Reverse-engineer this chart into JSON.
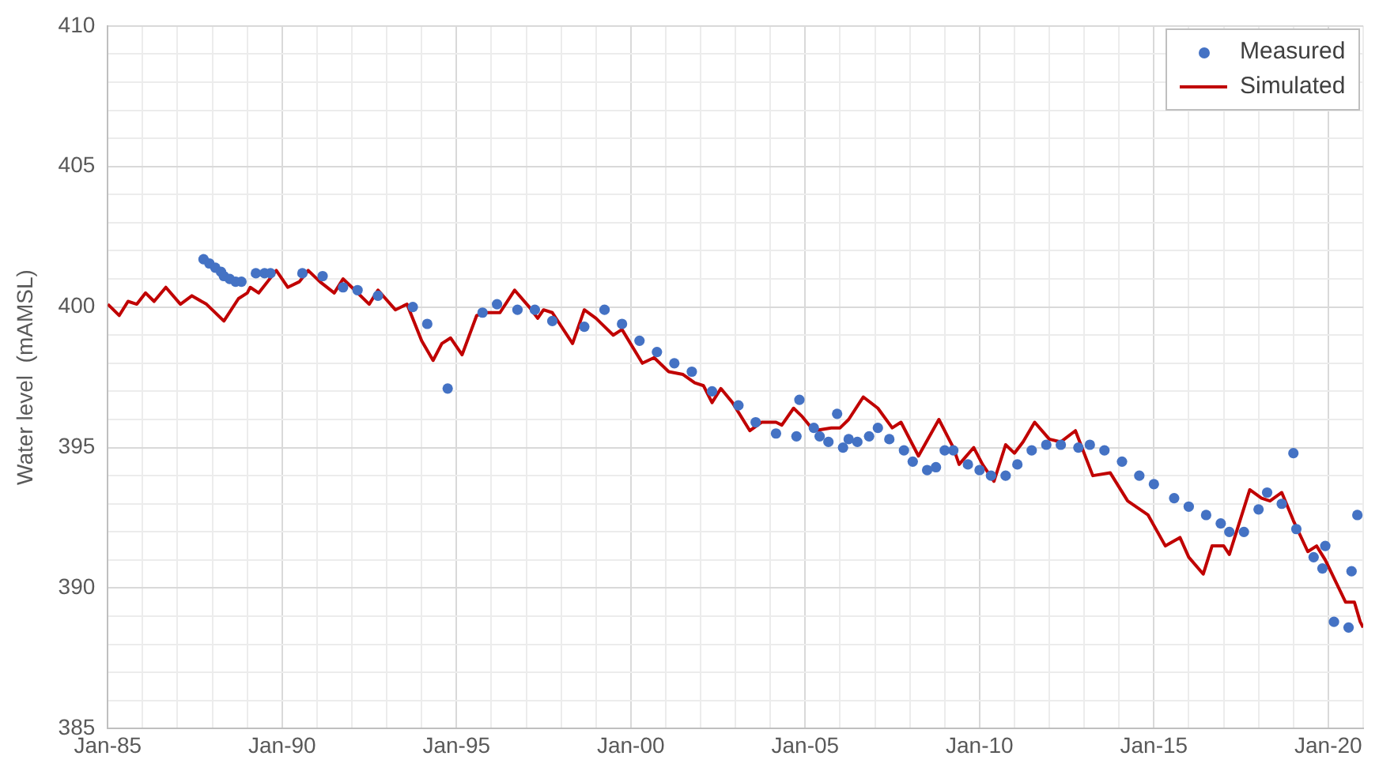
{
  "chart_data": {
    "type": "scatter",
    "ylabel": "Water level  (mAMSL)",
    "xlim": [
      "1985-01",
      "2021-01"
    ],
    "ylim": [
      385,
      410
    ],
    "xticks": [
      {
        "value": "1985-01",
        "label": "Jan-85"
      },
      {
        "value": "1986-01",
        "label": null
      },
      {
        "value": "1987-01",
        "label": null
      },
      {
        "value": "1988-01",
        "label": null
      },
      {
        "value": "1989-01",
        "label": null
      },
      {
        "value": "1990-01",
        "label": "Jan-90"
      },
      {
        "value": "1991-01",
        "label": null
      },
      {
        "value": "1992-01",
        "label": null
      },
      {
        "value": "1993-01",
        "label": null
      },
      {
        "value": "1994-01",
        "label": null
      },
      {
        "value": "1995-01",
        "label": "Jan-95"
      },
      {
        "value": "1996-01",
        "label": null
      },
      {
        "value": "1997-01",
        "label": null
      },
      {
        "value": "1998-01",
        "label": null
      },
      {
        "value": "1999-01",
        "label": null
      },
      {
        "value": "2000-01",
        "label": "Jan-00"
      },
      {
        "value": "2001-01",
        "label": null
      },
      {
        "value": "2002-01",
        "label": null
      },
      {
        "value": "2003-01",
        "label": null
      },
      {
        "value": "2004-01",
        "label": null
      },
      {
        "value": "2005-01",
        "label": "Jan-05"
      },
      {
        "value": "2006-01",
        "label": null
      },
      {
        "value": "2007-01",
        "label": null
      },
      {
        "value": "2008-01",
        "label": null
      },
      {
        "value": "2009-01",
        "label": null
      },
      {
        "value": "2010-01",
        "label": "Jan-10"
      },
      {
        "value": "2011-01",
        "label": null
      },
      {
        "value": "2012-01",
        "label": null
      },
      {
        "value": "2013-01",
        "label": null
      },
      {
        "value": "2014-01",
        "label": null
      },
      {
        "value": "2015-01",
        "label": "Jan-15"
      },
      {
        "value": "2016-01",
        "label": null
      },
      {
        "value": "2017-01",
        "label": null
      },
      {
        "value": "2018-01",
        "label": null
      },
      {
        "value": "2019-01",
        "label": null
      },
      {
        "value": "2020-01",
        "label": "Jan-20"
      },
      {
        "value": "2021-01",
        "label": null
      }
    ],
    "yticks": [
      385,
      {
        "value": 386,
        "label": null
      },
      {
        "value": 387,
        "label": null
      },
      {
        "value": 388,
        "label": null
      },
      {
        "value": 389,
        "label": null
      },
      390,
      {
        "value": 391,
        "label": null
      },
      {
        "value": 392,
        "label": null
      },
      {
        "value": 393,
        "label": null
      },
      {
        "value": 394,
        "label": null
      },
      395,
      {
        "value": 396,
        "label": null
      },
      {
        "value": 397,
        "label": null
      },
      {
        "value": 398,
        "label": null
      },
      {
        "value": 399,
        "label": null
      },
      400,
      {
        "value": 401,
        "label": null
      },
      {
        "value": 402,
        "label": null
      },
      {
        "value": 403,
        "label": null
      },
      {
        "value": 404,
        "label": null
      },
      405,
      {
        "value": 406,
        "label": null
      },
      {
        "value": 407,
        "label": null
      },
      {
        "value": 408,
        "label": null
      },
      {
        "value": 409,
        "label": null
      },
      410
    ],
    "grid": true,
    "legend": "top right",
    "series": [
      {
        "name": "Measured",
        "marker": "circle",
        "color": "#4472c4",
        "x": [
          "1987-10",
          "1987-12",
          "1988-02",
          "1988-04",
          "1988-05",
          "1988-07",
          "1988-09",
          "1988-11",
          "1989-04",
          "1989-07",
          "1989-09",
          "1990-08",
          "1991-03",
          "1991-10",
          "1992-03",
          "1992-10",
          "1993-10",
          "1994-03",
          "1994-10",
          "1995-10",
          "1996-03",
          "1996-10",
          "1997-04",
          "1997-10",
          "1998-09",
          "1999-04",
          "1999-10",
          "2000-04",
          "2000-10",
          "2001-04",
          "2001-10",
          "2002-05",
          "2003-02",
          "2003-08",
          "2004-03",
          "2004-10",
          "2004-11",
          "2005-04",
          "2005-06",
          "2005-09",
          "2005-12",
          "2006-02",
          "2006-04",
          "2006-07",
          "2006-11",
          "2007-02",
          "2007-06",
          "2007-11",
          "2008-02",
          "2008-07",
          "2008-10",
          "2009-01",
          "2009-04",
          "2009-09",
          "2010-01",
          "2010-05",
          "2010-10",
          "2011-02",
          "2011-07",
          "2011-12",
          "2012-05",
          "2012-11",
          "2013-03",
          "2013-08",
          "2014-02",
          "2014-08",
          "2015-01",
          "2015-08",
          "2016-01",
          "2016-07",
          "2016-12",
          "2017-03",
          "2017-08",
          "2018-01",
          "2018-04",
          "2018-09",
          "2019-01",
          "2019-02",
          "2019-08",
          "2019-11",
          "2019-12",
          "2020-03",
          "2020-08",
          "2020-09",
          "2020-11"
        ],
        "values": [
          401.7,
          401.55,
          401.4,
          401.25,
          401.1,
          401.0,
          400.9,
          400.9,
          401.2,
          401.2,
          401.2,
          401.2,
          401.1,
          400.7,
          400.6,
          400.4,
          400.0,
          399.4,
          397.1,
          399.8,
          400.1,
          399.9,
          399.9,
          399.5,
          399.3,
          399.9,
          399.4,
          398.8,
          398.4,
          398.0,
          397.7,
          397.0,
          396.5,
          395.9,
          395.5,
          395.4,
          396.7,
          395.7,
          395.4,
          395.2,
          396.2,
          395.0,
          395.3,
          395.2,
          395.4,
          395.7,
          395.3,
          394.9,
          394.5,
          394.2,
          394.3,
          394.9,
          394.9,
          394.4,
          394.2,
          394.0,
          394.0,
          394.4,
          394.9,
          395.1,
          395.1,
          395.0,
          395.1,
          394.9,
          394.5,
          394.0,
          393.7,
          393.2,
          392.9,
          392.6,
          392.3,
          392.0,
          392.0,
          392.8,
          393.4,
          393.0,
          394.8,
          392.1,
          391.1,
          390.7,
          391.5,
          388.8,
          388.6,
          390.6,
          392.6
        ]
      },
      {
        "name": "Simulated",
        "type": "line",
        "color": "#c00000",
        "line_style": "solid",
        "x": [
          "1985-01",
          "1985-05",
          "1985-08",
          "1985-11",
          "1986-02",
          "1986-05",
          "1986-09",
          "1987-02",
          "1987-06",
          "1987-11",
          "1988-05",
          "1988-10",
          "1989-01",
          "1989-02",
          "1989-05",
          "1989-08",
          "1989-11",
          "1990-03",
          "1990-07",
          "1990-10",
          "1991-02",
          "1991-07",
          "1991-10",
          "1992-02",
          "1992-07",
          "1992-10",
          "1993-04",
          "1993-08",
          "1994-01",
          "1994-05",
          "1994-08",
          "1994-11",
          "1995-03",
          "1995-08",
          "1995-11",
          "1996-04",
          "1996-09",
          "1997-02",
          "1997-05",
          "1997-07",
          "1997-10",
          "1998-05",
          "1998-09",
          "1999-01",
          "1999-07",
          "1999-10",
          "2000-05",
          "2000-09",
          "2001-02",
          "2001-07",
          "2001-11",
          "2002-02",
          "2002-05",
          "2002-08",
          "2002-12",
          "2003-06",
          "2003-10",
          "2004-03",
          "2004-05",
          "2004-09",
          "2004-12",
          "2005-04",
          "2005-10",
          "2006-01",
          "2006-04",
          "2006-09",
          "2007-02",
          "2007-07",
          "2007-10",
          "2008-04",
          "2008-11",
          "2009-04",
          "2009-06",
          "2009-11",
          "2010-02",
          "2010-06",
          "2010-10",
          "2011-01",
          "2011-04",
          "2011-08",
          "2012-01",
          "2012-05",
          "2012-10",
          "2013-04",
          "2013-10",
          "2014-04",
          "2014-11",
          "2015-05",
          "2015-10",
          "2016-01",
          "2016-06",
          "2016-09",
          "2017-01",
          "2017-03",
          "2017-10",
          "2018-02",
          "2018-05",
          "2018-09",
          "2019-01",
          "2019-06",
          "2019-09",
          "2019-12",
          "2020-07",
          "2020-10",
          "2020-12",
          "2021-01"
        ],
        "values": [
          400.1,
          399.7,
          400.2,
          400.1,
          400.5,
          400.2,
          400.7,
          400.1,
          400.4,
          400.1,
          399.5,
          400.3,
          400.5,
          400.7,
          400.5,
          400.9,
          401.3,
          400.7,
          400.9,
          401.3,
          400.9,
          400.5,
          401.0,
          400.6,
          400.1,
          400.6,
          399.9,
          400.1,
          398.8,
          398.1,
          398.7,
          398.9,
          398.3,
          399.7,
          399.8,
          399.8,
          400.6,
          400.0,
          399.6,
          399.9,
          399.8,
          398.7,
          399.9,
          399.6,
          399.0,
          399.2,
          398.0,
          398.2,
          397.7,
          397.6,
          397.3,
          397.2,
          396.6,
          397.1,
          396.6,
          395.6,
          395.9,
          395.9,
          395.8,
          396.4,
          396.1,
          395.6,
          395.7,
          395.7,
          396.0,
          396.8,
          396.4,
          395.7,
          395.9,
          394.7,
          396.0,
          395.0,
          394.4,
          395.0,
          394.4,
          393.8,
          395.1,
          394.8,
          395.2,
          395.9,
          395.3,
          395.2,
          395.6,
          394.0,
          394.1,
          393.1,
          392.6,
          391.5,
          391.8,
          391.1,
          390.5,
          391.5,
          391.5,
          391.2,
          393.5,
          393.2,
          393.1,
          393.4,
          392.4,
          391.3,
          391.5,
          391.0,
          389.5,
          389.5,
          388.8,
          388.6
        ]
      }
    ]
  }
}
